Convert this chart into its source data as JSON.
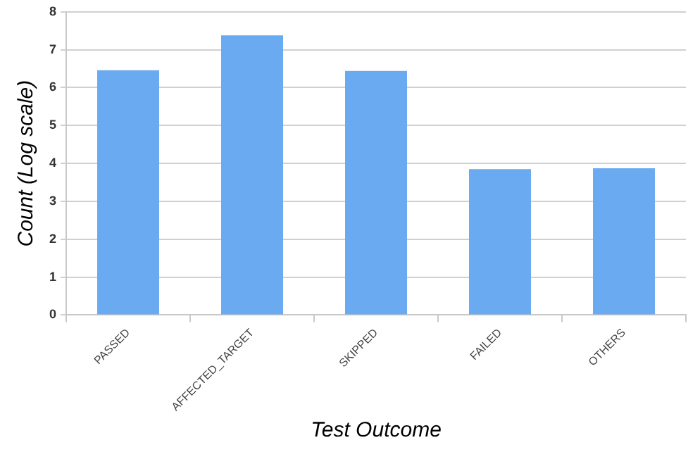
{
  "chart_data": {
    "type": "bar",
    "xlabel": "Test Outcome",
    "ylabel": "Count (Log scale)",
    "categories": [
      "PASSED",
      "AFFECTED_TARGET",
      "SKIPPED",
      "FAILED",
      "OTHERS"
    ],
    "values": [
      6.46,
      7.38,
      6.44,
      3.85,
      3.87
    ],
    "color": "#6aaaf0",
    "ylim": [
      0,
      8
    ],
    "yticks": [
      0,
      1,
      2,
      3,
      4,
      5,
      6,
      7,
      8
    ],
    "grid": "y"
  }
}
